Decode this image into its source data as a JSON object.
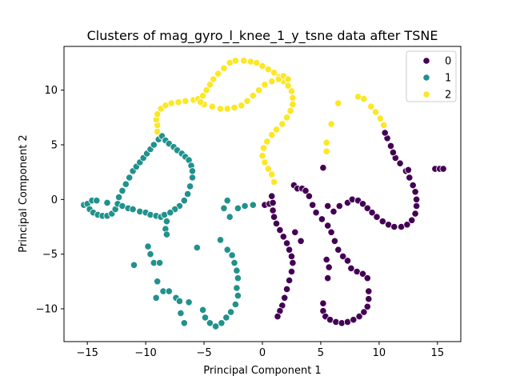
{
  "chart_data": {
    "type": "scatter",
    "title": "Clusters of mag_gyro_l_knee_1_y_tsne data after TSNE",
    "xlabel": "Principal Component 1",
    "ylabel": "Principal Component 2",
    "xlim": [
      -17,
      17
    ],
    "ylim": [
      -13,
      14
    ],
    "xticks": [
      -15,
      -10,
      -5,
      0,
      5,
      10,
      15
    ],
    "yticks": [
      -10,
      -5,
      0,
      5,
      10
    ],
    "grid": false,
    "legend_position": "top-right",
    "series": [
      {
        "name": "0",
        "color": "#440154",
        "points": [
          [
            0.2,
            -0.5
          ],
          [
            0.6,
            -0.4
          ],
          [
            0.9,
            -0.3
          ],
          [
            0.8,
            0.3
          ],
          [
            0.9,
            -1.0
          ],
          [
            1.0,
            -1.6
          ],
          [
            1.2,
            -2.2
          ],
          [
            1.5,
            -2.8
          ],
          [
            1.8,
            -3.4
          ],
          [
            2.1,
            -4.0
          ],
          [
            2.3,
            -4.6
          ],
          [
            2.5,
            -5.2
          ],
          [
            2.6,
            -5.8
          ],
          [
            2.5,
            -6.6
          ],
          [
            2.3,
            -7.4
          ],
          [
            2.1,
            -8.2
          ],
          [
            1.9,
            -9.0
          ],
          [
            1.7,
            -9.7
          ],
          [
            1.5,
            -10.2
          ],
          [
            1.3,
            -10.7
          ],
          [
            2.8,
            -3.0
          ],
          [
            3.3,
            -3.8
          ],
          [
            2.7,
            1.3
          ],
          [
            3.0,
            1.0
          ],
          [
            3.4,
            1.0
          ],
          [
            3.7,
            0.8
          ],
          [
            4.0,
            0.3
          ],
          [
            4.3,
            -0.5
          ],
          [
            4.6,
            -1.2
          ],
          [
            5.1,
            -1.8
          ],
          [
            5.6,
            -2.4
          ],
          [
            5.9,
            -3.0
          ],
          [
            6.2,
            -3.8
          ],
          [
            6.5,
            -4.6
          ],
          [
            6.9,
            -5.2
          ],
          [
            7.3,
            -5.6
          ],
          [
            7.6,
            -6.3
          ],
          [
            8.1,
            -6.6
          ],
          [
            8.6,
            -6.8
          ],
          [
            9.0,
            -7.2
          ],
          [
            5.5,
            -5.5
          ],
          [
            5.7,
            -6.2
          ],
          [
            5.6,
            -7.2
          ],
          [
            5.2,
            -9.5
          ],
          [
            5.2,
            -10.2
          ],
          [
            5.4,
            -10.7
          ],
          [
            5.8,
            -11.0
          ],
          [
            6.3,
            -11.2
          ],
          [
            6.8,
            -11.3
          ],
          [
            7.3,
            -11.2
          ],
          [
            7.8,
            -11.0
          ],
          [
            8.3,
            -10.7
          ],
          [
            8.7,
            -10.3
          ],
          [
            9.0,
            -9.8
          ],
          [
            9.1,
            -9.1
          ],
          [
            9.1,
            -8.4
          ],
          [
            5.6,
            -0.6
          ],
          [
            6.1,
            -1.1
          ],
          [
            6.6,
            -0.6
          ],
          [
            7.3,
            -0.3
          ],
          [
            7.7,
            0.0
          ],
          [
            8.2,
            -0.1
          ],
          [
            8.6,
            -0.4
          ],
          [
            9.0,
            -0.8
          ],
          [
            9.4,
            -1.2
          ],
          [
            9.8,
            -1.6
          ],
          [
            10.3,
            -2.0
          ],
          [
            10.8,
            -2.3
          ],
          [
            11.3,
            -2.5
          ],
          [
            11.9,
            -2.5
          ],
          [
            12.4,
            -2.3
          ],
          [
            12.8,
            -1.9
          ],
          [
            13.1,
            -1.3
          ],
          [
            13.2,
            -0.6
          ],
          [
            13.2,
            0.0
          ],
          [
            13.1,
            0.7
          ],
          [
            12.9,
            1.3
          ],
          [
            12.6,
            2.0
          ],
          [
            12.3,
            2.6
          ],
          [
            11.8,
            3.3
          ],
          [
            11.4,
            3.8
          ],
          [
            11.2,
            4.3
          ],
          [
            11.0,
            4.9
          ],
          [
            10.7,
            5.6
          ],
          [
            10.5,
            6.1
          ],
          [
            5.2,
            2.9
          ],
          [
            12.5,
            2.7
          ],
          [
            14.8,
            2.8
          ],
          [
            15.2,
            2.8
          ],
          [
            15.5,
            2.8
          ]
        ]
      },
      {
        "name": "1",
        "color": "#21918c",
        "points": [
          [
            -15.3,
            -0.5
          ],
          [
            -15.0,
            -0.4
          ],
          [
            -14.6,
            -0.1
          ],
          [
            -14.2,
            -0.1
          ],
          [
            -14.8,
            -0.9
          ],
          [
            -14.5,
            -1.2
          ],
          [
            -14.1,
            -1.4
          ],
          [
            -13.7,
            -1.5
          ],
          [
            -13.3,
            -1.5
          ],
          [
            -12.9,
            -1.3
          ],
          [
            -12.6,
            -0.9
          ],
          [
            -12.4,
            -0.4
          ],
          [
            -12.3,
            0.2
          ],
          [
            -12.0,
            0.8
          ],
          [
            -11.7,
            1.4
          ],
          [
            -11.4,
            2.0
          ],
          [
            -11.1,
            2.6
          ],
          [
            -10.8,
            3.0
          ],
          [
            -10.5,
            3.4
          ],
          [
            -10.2,
            3.8
          ],
          [
            -9.9,
            4.2
          ],
          [
            -9.6,
            4.6
          ],
          [
            -9.3,
            5.0
          ],
          [
            -8.9,
            5.5
          ],
          [
            -13.3,
            -0.3
          ],
          [
            -12.0,
            -0.6
          ],
          [
            -11.5,
            -0.8
          ],
          [
            -11.1,
            -0.9
          ],
          [
            -10.5,
            -1.1
          ],
          [
            -10.0,
            -1.2
          ],
          [
            -9.6,
            -1.4
          ],
          [
            -9.1,
            -1.5
          ],
          [
            -8.7,
            -1.6
          ],
          [
            -8.4,
            -1.4
          ],
          [
            -8.6,
            5.8
          ],
          [
            -8.3,
            5.4
          ],
          [
            -8.0,
            5.1
          ],
          [
            -7.6,
            4.8
          ],
          [
            -7.3,
            4.5
          ],
          [
            -6.9,
            4.2
          ],
          [
            -6.6,
            3.9
          ],
          [
            -6.3,
            3.6
          ],
          [
            -6.1,
            3.1
          ],
          [
            -6.0,
            2.6
          ],
          [
            -6.0,
            2.0
          ],
          [
            -6.2,
            1.2
          ],
          [
            -6.4,
            0.5
          ],
          [
            -6.7,
            -0.1
          ],
          [
            -7.1,
            -0.6
          ],
          [
            -7.5,
            -0.9
          ],
          [
            -7.9,
            -1.2
          ],
          [
            -8.2,
            -2.0
          ],
          [
            -8.3,
            -2.7
          ],
          [
            -8.2,
            -3.2
          ],
          [
            -9.8,
            -4.3
          ],
          [
            -9.6,
            -5.0
          ],
          [
            -9.3,
            -5.8
          ],
          [
            -8.8,
            -5.8
          ],
          [
            -11.0,
            -6.0
          ],
          [
            -9.0,
            -7.5
          ],
          [
            -8.5,
            -8.4
          ],
          [
            -8.0,
            -8.4
          ],
          [
            -9.1,
            -9.0
          ],
          [
            -7.4,
            -9.0
          ],
          [
            -7.1,
            -9.3
          ],
          [
            -7.0,
            -10.4
          ],
          [
            -6.7,
            -11.3
          ],
          [
            -6.3,
            -9.4
          ],
          [
            -5.6,
            -4.4
          ],
          [
            -3.0,
            -0.1
          ],
          [
            -3.3,
            -0.8
          ],
          [
            -2.8,
            -1.6
          ],
          [
            -2.1,
            -0.8
          ],
          [
            -1.5,
            -0.6
          ],
          [
            -0.8,
            -0.5
          ],
          [
            -3.6,
            -3.7
          ],
          [
            -3.0,
            -4.6
          ],
          [
            -2.6,
            -5.1
          ],
          [
            -2.4,
            -5.8
          ],
          [
            -2.2,
            -6.5
          ],
          [
            -2.1,
            -7.2
          ],
          [
            -2.2,
            -8.1
          ],
          [
            -2.1,
            -8.8
          ],
          [
            -2.3,
            -9.6
          ],
          [
            -2.7,
            -10.3
          ],
          [
            -3.1,
            -10.8
          ],
          [
            -3.5,
            -11.3
          ],
          [
            -4.0,
            -11.6
          ],
          [
            -4.5,
            -11.3
          ],
          [
            -4.9,
            -10.8
          ],
          [
            -5.1,
            -10.1
          ]
        ]
      },
      {
        "name": "2",
        "color": "#fde725",
        "points": [
          [
            -9.0,
            6.2
          ],
          [
            -9.0,
            6.8
          ],
          [
            -9.1,
            7.3
          ],
          [
            -9.0,
            7.8
          ],
          [
            -8.7,
            8.3
          ],
          [
            -8.3,
            8.6
          ],
          [
            -7.8,
            8.8
          ],
          [
            -7.2,
            8.9
          ],
          [
            -6.6,
            9.0
          ],
          [
            -5.9,
            9.1
          ],
          [
            -5.5,
            9.2
          ],
          [
            -5.1,
            9.5
          ],
          [
            -4.8,
            10.0
          ],
          [
            -4.5,
            10.5
          ],
          [
            -4.2,
            11.0
          ],
          [
            -3.8,
            11.5
          ],
          [
            -3.3,
            12.0
          ],
          [
            -2.8,
            12.5
          ],
          [
            -2.3,
            12.7
          ],
          [
            -1.6,
            12.7
          ],
          [
            -1.0,
            12.6
          ],
          [
            -0.5,
            12.5
          ],
          [
            0.0,
            12.2
          ],
          [
            0.5,
            11.9
          ],
          [
            1.0,
            11.6
          ],
          [
            1.4,
            11.2
          ],
          [
            1.8,
            10.8
          ],
          [
            2.2,
            10.4
          ],
          [
            2.5,
            9.9
          ],
          [
            2.6,
            9.3
          ],
          [
            2.6,
            8.7
          ],
          [
            2.4,
            8.1
          ],
          [
            2.1,
            7.5
          ],
          [
            1.7,
            6.9
          ],
          [
            1.2,
            6.4
          ],
          [
            0.8,
            5.9
          ],
          [
            0.4,
            5.3
          ],
          [
            0.1,
            4.7
          ],
          [
            0.0,
            4.0
          ],
          [
            0.2,
            3.4
          ],
          [
            0.5,
            2.8
          ],
          [
            0.8,
            2.3
          ],
          [
            1.0,
            1.6
          ],
          [
            -4.3,
            8.5
          ],
          [
            -3.6,
            8.3
          ],
          [
            -3.0,
            8.3
          ],
          [
            -2.4,
            8.4
          ],
          [
            -1.8,
            8.6
          ],
          [
            -1.3,
            9.0
          ],
          [
            -0.8,
            9.5
          ],
          [
            -0.3,
            10.0
          ],
          [
            0.2,
            10.5
          ],
          [
            0.8,
            10.8
          ],
          [
            1.4,
            11.0
          ],
          [
            1.8,
            11.3
          ],
          [
            2.2,
            11.0
          ],
          [
            -5.0,
            8.7
          ],
          [
            -5.3,
            8.9
          ],
          [
            5.5,
            4.4
          ],
          [
            5.5,
            5.2
          ],
          [
            5.9,
            6.9
          ],
          [
            6.5,
            8.8
          ],
          [
            8.2,
            9.4
          ],
          [
            8.7,
            9.2
          ],
          [
            9.3,
            8.5
          ],
          [
            9.7,
            8.0
          ],
          [
            10.1,
            7.4
          ],
          [
            10.4,
            6.8
          ]
        ]
      }
    ]
  }
}
